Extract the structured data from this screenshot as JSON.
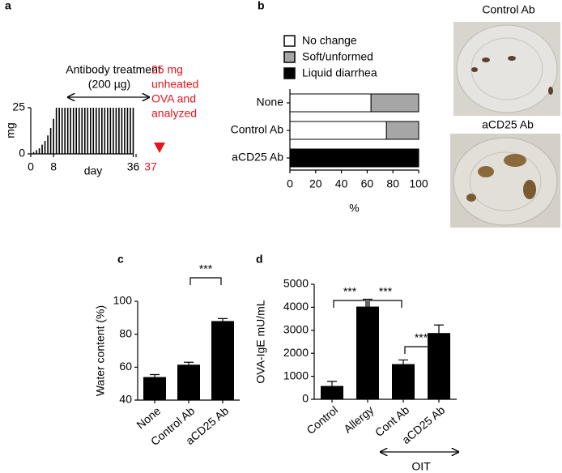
{
  "chart_data": [
    {
      "type": "bar",
      "panel_label": "a",
      "xlabel": "day",
      "ylabel": "mg",
      "x": [
        1,
        2,
        3,
        4,
        5,
        6,
        7,
        8,
        9,
        10,
        11,
        12,
        13,
        14,
        15,
        16,
        17,
        18,
        19,
        20,
        21,
        22,
        23,
        24,
        25,
        26,
        27,
        28,
        29,
        30,
        31,
        32,
        33,
        34,
        35,
        36
      ],
      "values": [
        1,
        2,
        3,
        5,
        7,
        10,
        14,
        19,
        25,
        25,
        25,
        25,
        25,
        25,
        25,
        25,
        25,
        25,
        25,
        25,
        25,
        25,
        25,
        25,
        25,
        25,
        25,
        25,
        25,
        25,
        25,
        25,
        25,
        25,
        25,
        25
      ],
      "color": "#000000",
      "xlim": [
        0,
        37
      ],
      "ylim": [
        0,
        25
      ],
      "xticks": [
        0,
        8,
        36,
        37
      ],
      "yticks": [
        0,
        25
      ],
      "xtick_colors": [
        "#000000",
        "#000000",
        "#000000",
        "#e8141c"
      ],
      "annotations": [
        "Antibody treatment",
        "(200 µg)"
      ],
      "note_lines": [
        "25 mg",
        "unheated",
        "OVA and",
        "analyzed"
      ],
      "note_color": "#e8141c"
    },
    {
      "type": "barh",
      "panel_label": "b",
      "xlabel": "%",
      "categories": [
        "None",
        "Control Ab",
        "aCD25 Ab"
      ],
      "series": [
        {
          "name": "No change",
          "color": "#ffffff",
          "values": [
            63,
            75,
            0
          ]
        },
        {
          "name": "Soft/unformed",
          "color": "#a6a6a6",
          "values": [
            37,
            25,
            0
          ]
        },
        {
          "name": "Liquid diarrhea",
          "color": "#000000",
          "values": [
            0,
            0,
            100
          ]
        }
      ],
      "xlim": [
        0,
        100
      ],
      "xticks": [
        0,
        20,
        40,
        60,
        80,
        100
      ],
      "images": [
        {
          "label": "Control Ab"
        },
        {
          "label": "aCD25 Ab"
        }
      ]
    },
    {
      "type": "bar",
      "panel_label": "c",
      "ylabel": "Water content (%)",
      "categories": [
        "None",
        "Control Ab",
        "aCD25 Ab"
      ],
      "values": [
        54,
        61.5,
        88
      ],
      "errors": [
        1.5,
        1.5,
        1.5
      ],
      "color": "#000000",
      "ylim": [
        40,
        100
      ],
      "yticks": [
        40,
        60,
        80,
        100
      ],
      "comparisons": [
        {
          "between": [
            1,
            2
          ],
          "label": "***"
        }
      ]
    },
    {
      "type": "bar",
      "panel_label": "d",
      "ylabel": "OVA-IgE mU/mL",
      "categories": [
        "Control",
        "Allergy",
        "Cont Ab",
        "aCD25 Ab"
      ],
      "values": [
        580,
        4030,
        1530,
        2880
      ],
      "errors": [
        200,
        320,
        180,
        350
      ],
      "color": "#000000",
      "ylim": [
        0,
        5000
      ],
      "yticks": [
        0,
        1000,
        2000,
        3000,
        4000,
        5000
      ],
      "comparisons": [
        {
          "between": [
            0,
            1
          ],
          "label": "***"
        },
        {
          "between": [
            1,
            2
          ],
          "label": "***"
        },
        {
          "between": [
            2,
            3
          ],
          "label": "***"
        }
      ],
      "group": {
        "between": [
          2,
          3
        ],
        "label": "OIT"
      }
    }
  ]
}
